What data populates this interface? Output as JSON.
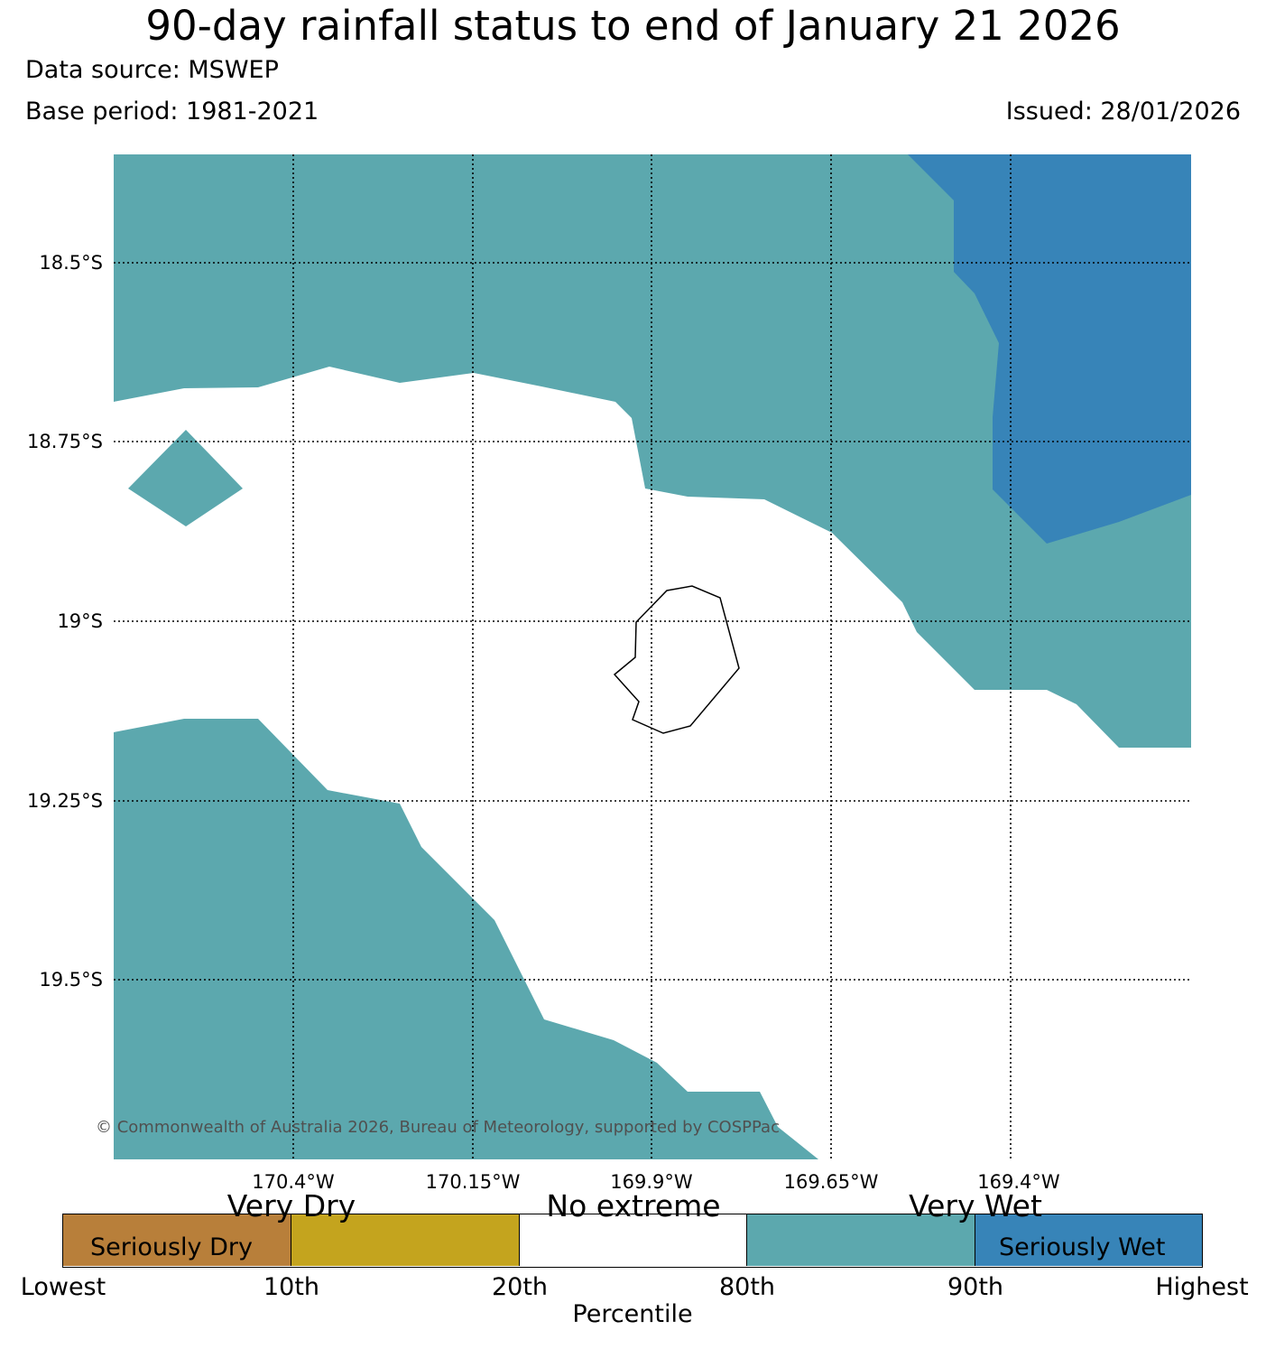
{
  "header": {
    "title": "90-day rainfall status to end of January 21 2026",
    "data_source": "Data source: MSWEP",
    "base_period": "Base period: 1981-2021",
    "issued": "Issued: 28/01/2026"
  },
  "map": {
    "lat_labels": [
      "18.5°S",
      "18.75°S",
      "19°S",
      "19.25°S",
      "19.5°S"
    ],
    "lon_labels": [
      "170.4°W",
      "170.15°W",
      "169.9°W",
      "169.65°W",
      "169.4°W"
    ],
    "copyright": "© Commonwealth of Australia 2026, Bureau of Meteorology, supported by COSPPac",
    "colors": {
      "very_wet": "#5ca8ae",
      "seriously_wet": "#3784b8",
      "no_extreme": "#ffffff",
      "coastline": "#000000"
    }
  },
  "legend": {
    "categories_top": [
      "Very Dry",
      "No extreme",
      "Very Wet"
    ],
    "categories_inside": [
      "Seriously Dry",
      "Seriously Wet"
    ],
    "ticks": [
      "Lowest",
      "10th",
      "20th",
      "80th",
      "90th",
      "Highest"
    ],
    "axis_label": "Percentile",
    "colors": [
      "#b87f3a",
      "#c4a41e",
      "#ffffff",
      "#5ca8ae",
      "#3784b8"
    ]
  }
}
